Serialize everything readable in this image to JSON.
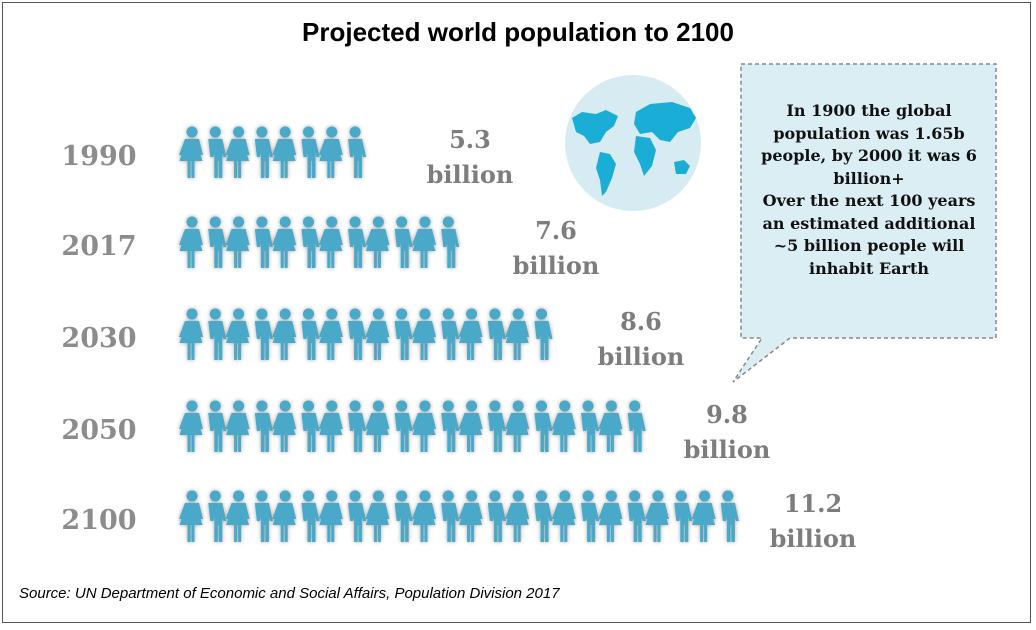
{
  "title": "Projected world population to 2100",
  "source": "Source: UN Department of Economic and Social Affairs, Population Division 2017",
  "callout": {
    "lines": [
      "In 1900 the global",
      "population was 1.65b",
      "people, by 2000 it was 6",
      "billion+",
      "Over the next 100 years",
      "an estimated additional",
      "~5 billion people will",
      "inhabit Earth"
    ]
  },
  "colors": {
    "figure": "#4aa8c8",
    "globe": "#d6ecf2",
    "continents": "#1aaed6",
    "callout_fill": "#dbeef3",
    "label": "#7d7d7d"
  },
  "icons": {
    "figure": "person-icon",
    "globe": "world-map-icon"
  },
  "chart_data": {
    "type": "bar",
    "style": "pictograph",
    "categories": [
      "1990",
      "2017",
      "2030",
      "2050",
      "2100"
    ],
    "values": [
      5.3,
      7.6,
      8.6,
      9.8,
      11.2
    ],
    "icon_counts": [
      8,
      12,
      16,
      20,
      24
    ],
    "value_labels": [
      {
        "number": "5.3",
        "unit": "billion"
      },
      {
        "number": "7.6",
        "unit": "billion"
      },
      {
        "number": "8.6",
        "unit": "billion"
      },
      {
        "number": "9.8",
        "unit": "billion"
      },
      {
        "number": "11.2",
        "unit": "billion"
      }
    ],
    "title": "Projected world population to 2100"
  }
}
